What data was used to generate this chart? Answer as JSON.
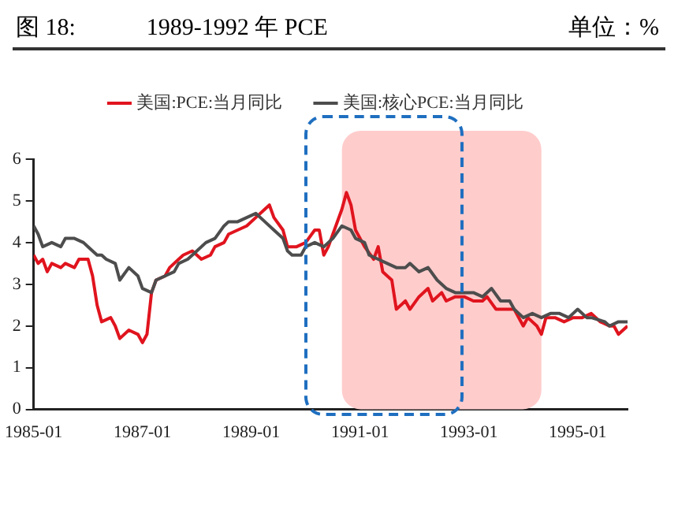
{
  "chart_data": {
    "type": "line",
    "title": "图 18:　　　1989-1992 年 PCE",
    "ylabel": "单位：%",
    "xlim": [
      "1985-01",
      "1995-12"
    ],
    "xticks": [
      "1985-01",
      "1987-01",
      "1989-01",
      "1991-01",
      "1993-01",
      "1995-01"
    ],
    "ylim": [
      0,
      6
    ],
    "yticks": [
      0,
      1,
      2,
      3,
      4,
      5,
      6
    ],
    "grid": false,
    "legend": "top",
    "marker": "none",
    "line_style": "solid",
    "bands": [
      {
        "axis": "x",
        "from": "1990-09",
        "to": "1994-05",
        "color": "#ffcccc"
      }
    ],
    "series": [
      {
        "name": "美国:PCE:当月同比",
        "color": "#e0141e",
        "x": [
          "1985-01",
          "1985-02",
          "1985-03",
          "1985-04",
          "1985-05",
          "1985-07",
          "1985-08",
          "1985-10",
          "1985-11",
          "1986-01",
          "1986-02",
          "1986-03",
          "1986-04",
          "1986-06",
          "1986-07",
          "1986-08",
          "1986-10",
          "1986-12",
          "1987-01",
          "1987-02",
          "1987-03",
          "1987-04",
          "1987-06",
          "1987-07",
          "1987-09",
          "1987-10",
          "1987-12",
          "1988-02",
          "1988-04",
          "1988-05",
          "1988-07",
          "1988-08",
          "1988-10",
          "1988-12",
          "1989-02",
          "1989-04",
          "1989-05",
          "1989-06",
          "1989-08",
          "1989-09",
          "1989-10",
          "1989-11",
          "1990-01",
          "1990-03",
          "1990-04",
          "1990-05",
          "1990-06",
          "1990-07",
          "1990-09",
          "1990-10",
          "1990-11",
          "1990-12",
          "1991-02",
          "1991-04",
          "1991-05",
          "1991-06",
          "1991-08",
          "1991-09",
          "1991-11",
          "1991-12",
          "1992-02",
          "1992-04",
          "1992-05",
          "1992-07",
          "1992-08",
          "1992-10",
          "1992-12",
          "1993-02",
          "1993-04",
          "1993-05",
          "1993-07",
          "1993-09",
          "1993-11",
          "1994-01",
          "1994-02",
          "1994-04",
          "1994-05",
          "1994-06",
          "1994-08",
          "1994-10",
          "1994-12",
          "1995-02",
          "1995-04",
          "1995-06",
          "1995-08",
          "1995-09",
          "1995-10",
          "1995-12"
        ],
        "values": [
          3.7,
          3.5,
          3.6,
          3.3,
          3.5,
          3.4,
          3.5,
          3.4,
          3.6,
          3.6,
          3.2,
          2.5,
          2.1,
          2.2,
          2.0,
          1.7,
          1.9,
          1.8,
          1.6,
          1.8,
          2.8,
          3.1,
          3.2,
          3.4,
          3.6,
          3.7,
          3.8,
          3.6,
          3.7,
          3.9,
          4.0,
          4.2,
          4.3,
          4.4,
          4.6,
          4.8,
          4.9,
          4.6,
          4.3,
          3.9,
          3.9,
          3.9,
          4.0,
          4.3,
          4.3,
          3.7,
          3.9,
          4.2,
          4.8,
          5.2,
          4.9,
          4.3,
          3.9,
          3.6,
          3.9,
          3.3,
          3.1,
          2.4,
          2.6,
          2.4,
          2.7,
          2.9,
          2.6,
          2.8,
          2.6,
          2.7,
          2.7,
          2.6,
          2.6,
          2.7,
          2.4,
          2.4,
          2.4,
          2.0,
          2.2,
          2.0,
          1.8,
          2.2,
          2.2,
          2.1,
          2.2,
          2.2,
          2.3,
          2.1,
          2.0,
          2.0,
          1.8,
          2.0
        ]
      },
      {
        "name": "美国:核心PCE:当月同比",
        "color": "#4d4d4d",
        "x": [
          "1985-01",
          "1985-02",
          "1985-03",
          "1985-05",
          "1985-07",
          "1985-08",
          "1985-10",
          "1985-12",
          "1986-01",
          "1986-03",
          "1986-04",
          "1986-05",
          "1986-07",
          "1986-08",
          "1986-10",
          "1986-12",
          "1987-01",
          "1987-03",
          "1987-04",
          "1987-06",
          "1987-08",
          "1987-09",
          "1987-11",
          "1988-01",
          "1988-03",
          "1988-05",
          "1988-07",
          "1988-08",
          "1988-10",
          "1988-12",
          "1989-02",
          "1989-04",
          "1989-06",
          "1989-08",
          "1989-09",
          "1989-10",
          "1989-12",
          "1990-01",
          "1990-03",
          "1990-05",
          "1990-06",
          "1990-07",
          "1990-09",
          "1990-11",
          "1990-12",
          "1991-02",
          "1991-03",
          "1991-05",
          "1991-07",
          "1991-09",
          "1991-11",
          "1991-12",
          "1992-02",
          "1992-04",
          "1992-06",
          "1992-08",
          "1992-10",
          "1992-12",
          "1993-02",
          "1993-04",
          "1993-06",
          "1993-08",
          "1993-10",
          "1993-11",
          "1994-01",
          "1994-03",
          "1994-05",
          "1994-07",
          "1994-09",
          "1994-11",
          "1995-01",
          "1995-03",
          "1995-04",
          "1995-07",
          "1995-08",
          "1995-10",
          "1995-12"
        ],
        "values": [
          4.4,
          4.2,
          3.9,
          4.0,
          3.9,
          4.1,
          4.1,
          4.0,
          3.9,
          3.7,
          3.7,
          3.6,
          3.5,
          3.1,
          3.4,
          3.2,
          2.9,
          2.8,
          3.1,
          3.2,
          3.3,
          3.5,
          3.6,
          3.8,
          4.0,
          4.1,
          4.4,
          4.5,
          4.5,
          4.6,
          4.7,
          4.5,
          4.3,
          4.1,
          3.8,
          3.7,
          3.7,
          3.9,
          4.0,
          3.9,
          4.0,
          4.1,
          4.4,
          4.3,
          4.1,
          4.0,
          3.7,
          3.6,
          3.5,
          3.4,
          3.4,
          3.5,
          3.3,
          3.4,
          3.1,
          2.9,
          2.8,
          2.8,
          2.8,
          2.7,
          2.9,
          2.6,
          2.6,
          2.4,
          2.2,
          2.3,
          2.2,
          2.3,
          2.3,
          2.2,
          2.4,
          2.2,
          2.2,
          2.1,
          2.0,
          2.1,
          2.1
        ]
      }
    ]
  }
}
